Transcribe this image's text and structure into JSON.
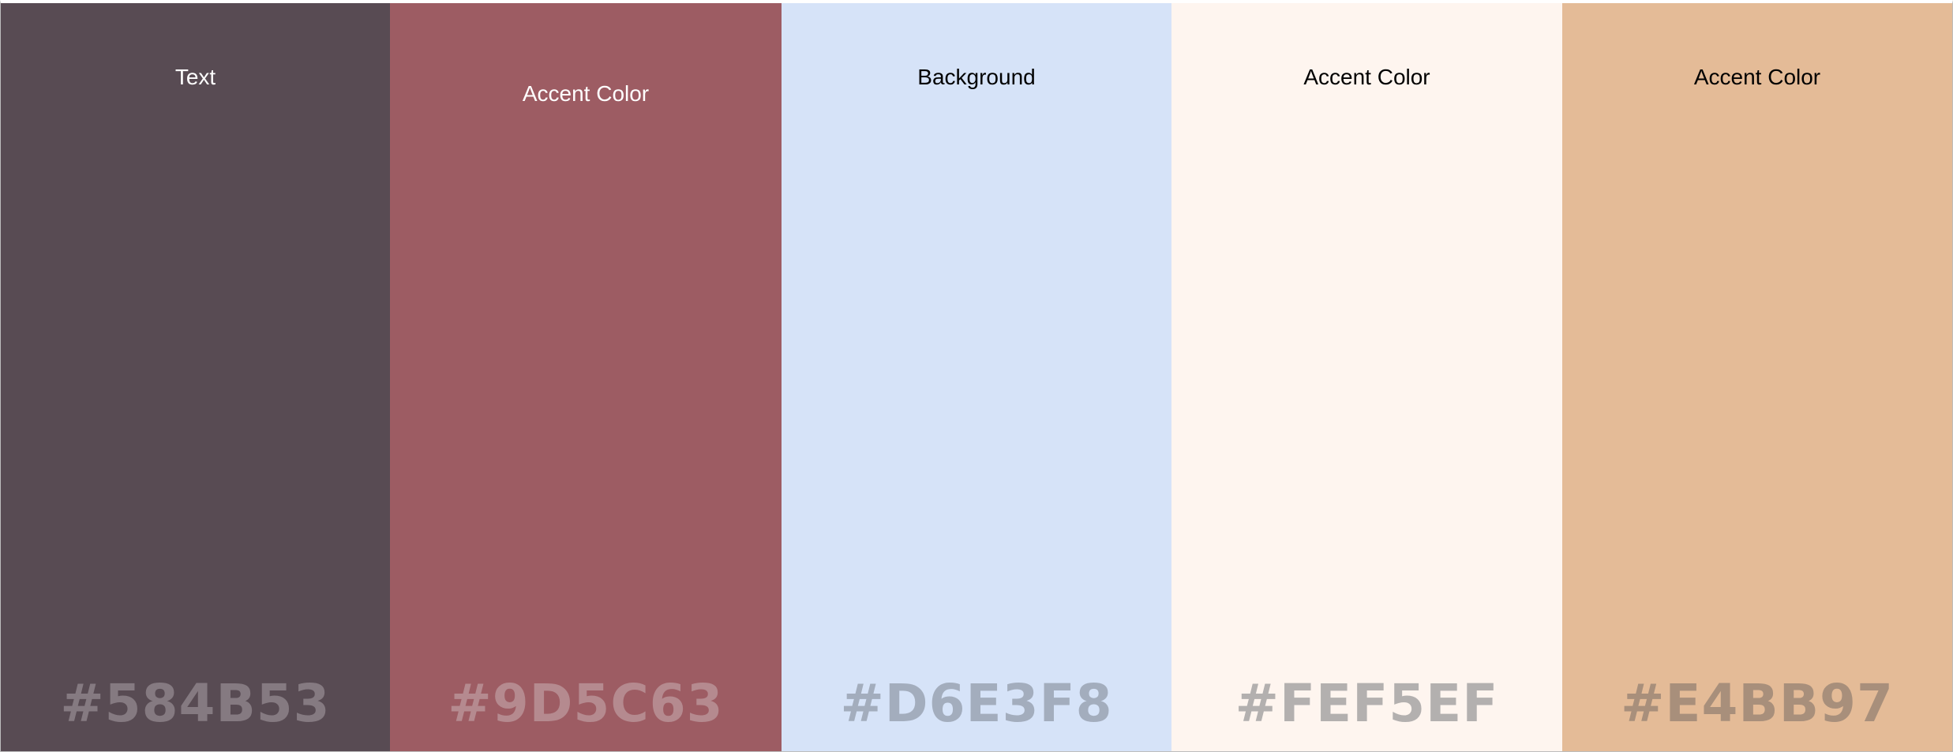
{
  "palette": {
    "swatches": [
      {
        "label": "Text",
        "hex": "#584B53",
        "color": "#584B53",
        "label_color": "#FFFFFF",
        "hex_text_color": "#857A81"
      },
      {
        "label": "Accent Color",
        "hex": "#9D5C63",
        "color": "#9D5C63",
        "label_color": "#FFFFFF",
        "hex_text_color": "#B58A8F"
      },
      {
        "label": "Background",
        "hex": "#D6E3F8",
        "color": "#D6E3F8",
        "label_color": "#000000",
        "hex_text_color": "#A3ADBD"
      },
      {
        "label": "Accent Color",
        "hex": "#FEF5EF",
        "color": "#FEF5EF",
        "label_color": "#000000",
        "hex_text_color": "#B3B0AF"
      },
      {
        "label": "Accent Color",
        "hex": "#E4BB97",
        "color": "#E4BB97",
        "label_color": "#000000",
        "hex_text_color": "#A88F7B"
      }
    ]
  }
}
